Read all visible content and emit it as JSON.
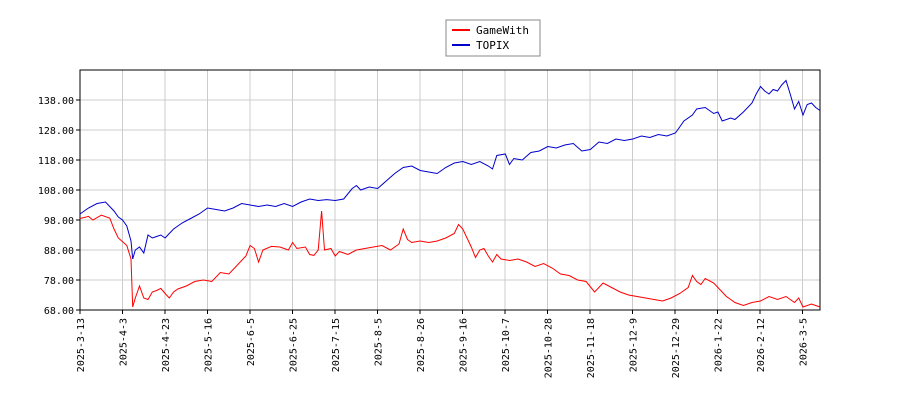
{
  "chart_data": {
    "type": "line",
    "title": "",
    "xlabel": "",
    "ylabel": "",
    "ylim": [
      68,
      148
    ],
    "y_ticks": [
      "68.00",
      "78.00",
      "88.00",
      "98.00",
      "108.00",
      "118.00",
      "128.00",
      "138.00"
    ],
    "x_ticks": [
      "2025-3-13",
      "2025-4-3",
      "2025-4-23",
      "2025-5-16",
      "2025-6-5",
      "2025-6-25",
      "2025-7-15",
      "2025-8-5",
      "2025-8-26",
      "2025-9-16",
      "2025-10-7",
      "2025-10-28",
      "2025-11-18",
      "2025-12-9",
      "2025-12-29",
      "2026-1-22",
      "2026-2-12",
      "2026-3-5"
    ],
    "grid": true,
    "legend_position": "top-center",
    "series": [
      {
        "name": "GameWith",
        "color": "#ff0000",
        "values": [
          [
            0,
            98.5
          ],
          [
            2,
            99.2
          ],
          [
            3,
            98.0
          ],
          [
            5,
            99.6
          ],
          [
            7,
            98.6
          ],
          [
            8,
            95.0
          ],
          [
            9,
            92.0
          ],
          [
            10,
            90.8
          ],
          [
            11,
            89.5
          ],
          [
            12,
            85.0
          ],
          [
            12.4,
            69.0
          ],
          [
            13,
            72.0
          ],
          [
            14,
            76.0
          ],
          [
            15,
            72.0
          ],
          [
            16,
            71.5
          ],
          [
            17,
            74.0
          ],
          [
            18,
            74.5
          ],
          [
            19,
            75.2
          ],
          [
            20,
            73.5
          ],
          [
            21,
            72.0
          ],
          [
            22,
            74.0
          ],
          [
            23,
            75.0
          ],
          [
            25,
            76.0
          ],
          [
            27,
            77.5
          ],
          [
            29,
            78.0
          ],
          [
            31,
            77.5
          ],
          [
            33,
            80.5
          ],
          [
            35,
            80.0
          ],
          [
            37,
            83.0
          ],
          [
            39,
            86.0
          ],
          [
            40,
            89.5
          ],
          [
            41,
            88.5
          ],
          [
            42,
            84.0
          ],
          [
            43,
            88.0
          ],
          [
            45,
            89.2
          ],
          [
            47,
            89.0
          ],
          [
            49,
            88.0
          ],
          [
            50,
            90.5
          ],
          [
            51,
            88.5
          ],
          [
            53,
            89.0
          ],
          [
            54,
            86.5
          ],
          [
            55,
            86.2
          ],
          [
            56,
            88.0
          ],
          [
            56.8,
            101.0
          ],
          [
            57.5,
            88.0
          ],
          [
            59,
            88.5
          ],
          [
            60,
            86.0
          ],
          [
            61,
            87.5
          ],
          [
            63,
            86.5
          ],
          [
            65,
            88.0
          ],
          [
            67,
            88.5
          ],
          [
            69,
            89.0
          ],
          [
            71,
            89.5
          ],
          [
            73,
            88.0
          ],
          [
            75,
            90.0
          ],
          [
            76,
            95.0
          ],
          [
            77,
            91.5
          ],
          [
            78,
            90.5
          ],
          [
            80,
            91.0
          ],
          [
            82,
            90.5
          ],
          [
            84,
            91.0
          ],
          [
            86,
            92.0
          ],
          [
            88,
            93.5
          ],
          [
            89,
            96.5
          ],
          [
            90,
            95.0
          ],
          [
            91,
            92.0
          ],
          [
            92,
            89.0
          ],
          [
            93,
            85.5
          ],
          [
            94,
            88.0
          ],
          [
            95,
            88.5
          ],
          [
            96,
            86.0
          ],
          [
            97,
            84.0
          ],
          [
            98,
            86.5
          ],
          [
            99,
            85.0
          ],
          [
            101,
            84.5
          ],
          [
            103,
            85.0
          ],
          [
            105,
            84.0
          ],
          [
            107,
            82.5
          ],
          [
            109,
            83.5
          ],
          [
            111,
            82.0
          ],
          [
            113,
            80.0
          ],
          [
            115,
            79.5
          ],
          [
            117,
            78.0
          ],
          [
            119,
            77.5
          ],
          [
            121,
            74.0
          ],
          [
            123,
            77.0
          ],
          [
            125,
            75.5
          ],
          [
            127,
            74.0
          ],
          [
            129,
            73.0
          ],
          [
            131,
            72.5
          ],
          [
            133,
            72.0
          ],
          [
            135,
            71.5
          ],
          [
            137,
            71.0
          ],
          [
            139,
            72.0
          ],
          [
            141,
            73.5
          ],
          [
            143,
            75.5
          ],
          [
            144,
            79.5
          ],
          [
            145,
            77.5
          ],
          [
            146,
            76.5
          ],
          [
            147,
            78.5
          ],
          [
            149,
            77.0
          ],
          [
            150,
            75.5
          ],
          [
            151,
            74.0
          ],
          [
            152,
            72.5
          ],
          [
            153,
            71.5
          ],
          [
            154,
            70.5
          ],
          [
            156,
            69.5
          ],
          [
            158,
            70.5
          ],
          [
            160,
            71.0
          ],
          [
            162,
            72.5
          ],
          [
            164,
            71.5
          ],
          [
            166,
            72.5
          ],
          [
            168,
            70.5
          ],
          [
            169,
            72.0
          ],
          [
            170,
            69.0
          ],
          [
            172,
            70.0
          ],
          [
            173,
            69.5
          ],
          [
            174,
            69.0
          ]
        ]
      },
      {
        "name": "TOPIX",
        "color": "#0000cc",
        "values": [
          [
            0,
            100.0
          ],
          [
            2,
            102.0
          ],
          [
            4,
            103.5
          ],
          [
            6,
            104.0
          ],
          [
            8,
            101.0
          ],
          [
            9,
            99.0
          ],
          [
            10,
            98.0
          ],
          [
            11,
            96.0
          ],
          [
            12,
            91.0
          ],
          [
            12.4,
            85.0
          ],
          [
            13,
            88.0
          ],
          [
            14,
            89.0
          ],
          [
            15,
            87.0
          ],
          [
            16,
            93.0
          ],
          [
            17,
            92.0
          ],
          [
            18,
            92.5
          ],
          [
            19,
            93.0
          ],
          [
            20,
            92.0
          ],
          [
            21,
            93.5
          ],
          [
            22,
            95.0
          ],
          [
            24,
            97.0
          ],
          [
            26,
            98.5
          ],
          [
            28,
            100.0
          ],
          [
            30,
            102.0
          ],
          [
            32,
            101.5
          ],
          [
            34,
            101.0
          ],
          [
            36,
            102.0
          ],
          [
            38,
            103.5
          ],
          [
            40,
            103.0
          ],
          [
            42,
            102.5
          ],
          [
            44,
            103.0
          ],
          [
            46,
            102.5
          ],
          [
            48,
            103.5
          ],
          [
            50,
            102.5
          ],
          [
            52,
            104.0
          ],
          [
            54,
            105.0
          ],
          [
            56,
            104.5
          ],
          [
            58,
            104.8
          ],
          [
            60,
            104.5
          ],
          [
            62,
            105.0
          ],
          [
            64,
            108.5
          ],
          [
            65,
            109.5
          ],
          [
            66,
            108.0
          ],
          [
            68,
            109.0
          ],
          [
            70,
            108.5
          ],
          [
            72,
            111.0
          ],
          [
            74,
            113.5
          ],
          [
            76,
            115.5
          ],
          [
            78,
            116.0
          ],
          [
            80,
            114.5
          ],
          [
            82,
            114.0
          ],
          [
            84,
            113.5
          ],
          [
            86,
            115.5
          ],
          [
            88,
            117.0
          ],
          [
            90,
            117.5
          ],
          [
            92,
            116.5
          ],
          [
            94,
            117.5
          ],
          [
            96,
            116.0
          ],
          [
            97,
            115.0
          ],
          [
            98,
            119.5
          ],
          [
            100,
            120.0
          ],
          [
            101,
            116.5
          ],
          [
            102,
            118.5
          ],
          [
            104,
            118.0
          ],
          [
            106,
            120.5
          ],
          [
            108,
            121.0
          ],
          [
            110,
            122.5
          ],
          [
            112,
            122.0
          ],
          [
            114,
            123.0
          ],
          [
            116,
            123.5
          ],
          [
            118,
            121.0
          ],
          [
            120,
            121.5
          ],
          [
            122,
            124.0
          ],
          [
            124,
            123.5
          ],
          [
            126,
            125.0
          ],
          [
            128,
            124.5
          ],
          [
            130,
            125.0
          ],
          [
            132,
            126.0
          ],
          [
            134,
            125.5
          ],
          [
            136,
            126.5
          ],
          [
            138,
            126.0
          ],
          [
            140,
            127.0
          ],
          [
            141,
            129.0
          ],
          [
            142,
            131.0
          ],
          [
            144,
            133.0
          ],
          [
            145,
            135.0
          ],
          [
            147,
            135.5
          ],
          [
            149,
            133.5
          ],
          [
            150,
            134.0
          ],
          [
            151,
            131.0
          ],
          [
            153,
            132.0
          ],
          [
            154,
            131.5
          ],
          [
            156,
            134.0
          ],
          [
            158,
            137.0
          ],
          [
            159,
            140.0
          ],
          [
            160,
            142.5
          ],
          [
            161,
            141.0
          ],
          [
            162,
            140.0
          ],
          [
            163,
            141.5
          ],
          [
            164,
            141.0
          ],
          [
            165,
            143.0
          ],
          [
            166,
            144.5
          ],
          [
            167,
            140.0
          ],
          [
            168,
            135.0
          ],
          [
            169,
            137.5
          ],
          [
            170,
            133.0
          ],
          [
            171,
            136.5
          ],
          [
            172,
            137.0
          ],
          [
            173,
            135.5
          ],
          [
            174,
            134.5
          ]
        ]
      }
    ]
  }
}
